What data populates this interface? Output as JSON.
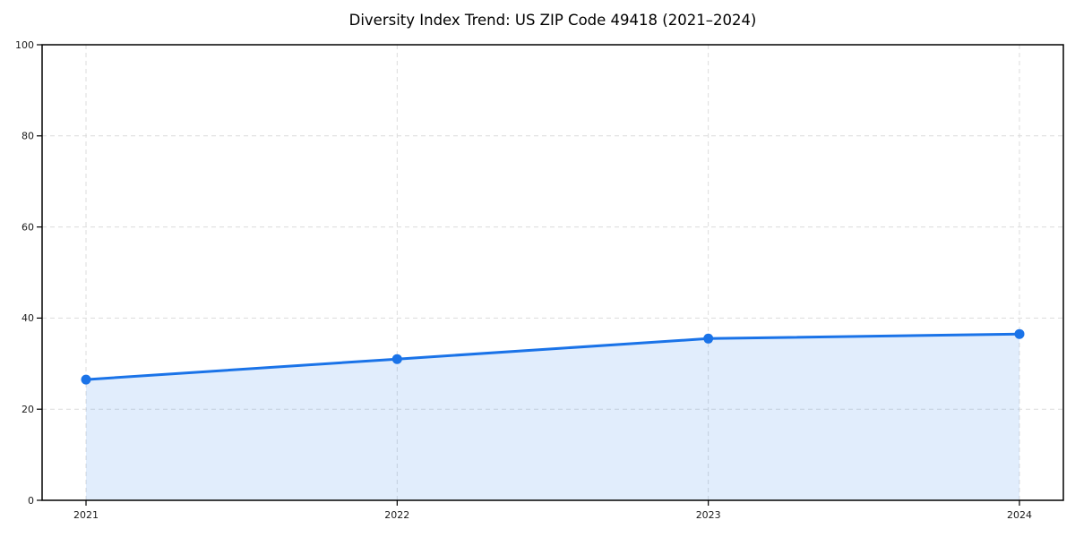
{
  "chart_data": {
    "type": "line",
    "title": "Diversity Index Trend: US ZIP Code 49418 (2021–2024)",
    "categories": [
      "2021",
      "2022",
      "2023",
      "2024"
    ],
    "series": [
      {
        "name": "Diversity Index",
        "values": [
          26.5,
          31.0,
          35.5,
          36.5
        ]
      }
    ],
    "xlabel": "",
    "ylabel": "",
    "ylim": [
      0,
      100
    ],
    "yticks": [
      0,
      20,
      40,
      60,
      80,
      100
    ],
    "grid": true,
    "grid_style": "dashed",
    "legend_position": "none",
    "area_fill": true,
    "marker": "circle",
    "colors": {
      "line": "#1a73e8",
      "marker": "#1a73e8",
      "area": "rgba(26,115,232,0.13)",
      "grid": "#dcdcdc",
      "spine": "#000000",
      "text": "#1a1a1a",
      "background": "#ffffff"
    }
  }
}
